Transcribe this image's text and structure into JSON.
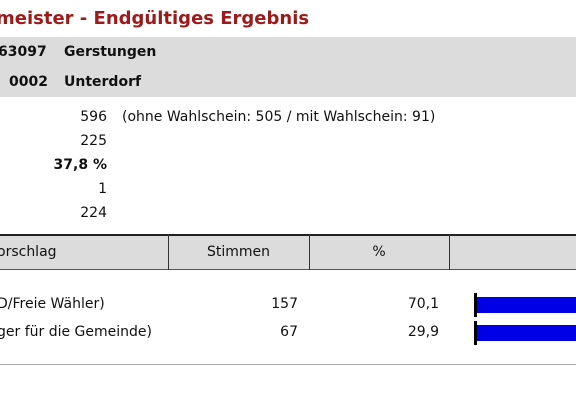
{
  "header": {
    "title": "meister - Endgültiges Ergebnis"
  },
  "region": [
    {
      "code": "63097",
      "name": "Gerstungen"
    },
    {
      "code": "0002",
      "name": "Unterdorf"
    }
  ],
  "summary": [
    {
      "value": "596",
      "note": "(ohne Wahlschein: 505 / mit Wahlschein: 91)"
    },
    {
      "value": "225"
    },
    {
      "value": "37,8 %"
    },
    {
      "value": "1"
    },
    {
      "value": "224"
    }
  ],
  "table": {
    "columns": [
      "orschlag",
      "Stimmen",
      "%"
    ],
    "rows": [
      {
        "name": "D/Freie Wähler)",
        "votes": "157",
        "percent": {
          "value": 70.1,
          "label": "70,1"
        }
      },
      {
        "name": "ger für die Gemeinde)",
        "votes": "67",
        "percent": {
          "value": 29.9,
          "label": "29,9"
        }
      }
    ]
  }
}
